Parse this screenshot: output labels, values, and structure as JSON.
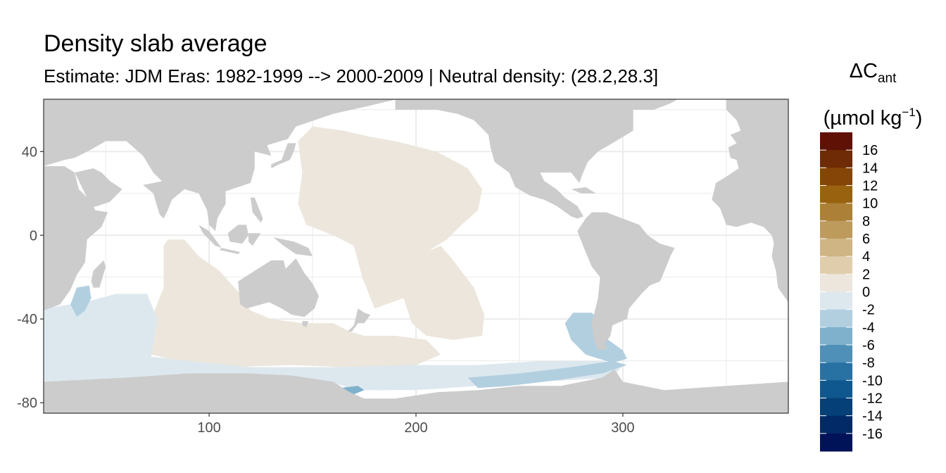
{
  "chart_data": {
    "type": "heatmap",
    "title": "Density slab average",
    "subtitle": "Estimate: JDM Eras: 1982-1999 --> 2000-2009 | Neutral density: (28.2,28.3]",
    "legend": {
      "title_main": "ΔC",
      "title_sub": "ant",
      "unit_main": "(µmol kg",
      "unit_sup": "−1",
      "unit_close": ")",
      "placement": "right",
      "labels": [
        "16",
        "14",
        "12",
        "10",
        "8",
        "6",
        "4",
        "2",
        "0",
        "-2",
        "-4",
        "-6",
        "-8",
        "-10",
        "-12",
        "-14",
        "-16"
      ],
      "bins": [
        {
          "from": 16,
          "to": 18,
          "color": "#5e1104"
        },
        {
          "from": 14,
          "to": 16,
          "color": "#6e2b05"
        },
        {
          "from": 12,
          "to": 14,
          "color": "#844507"
        },
        {
          "from": 10,
          "to": 12,
          "color": "#99620f"
        },
        {
          "from": 8,
          "to": 10,
          "color": "#ac8137"
        },
        {
          "from": 6,
          "to": 8,
          "color": "#bd9b5c"
        },
        {
          "from": 4,
          "to": 6,
          "color": "#cfb484"
        },
        {
          "from": 2,
          "to": 4,
          "color": "#e0cdab"
        },
        {
          "from": 0,
          "to": 2,
          "color": "#ede6dc"
        },
        {
          "from": -2,
          "to": 0,
          "color": "#dde8ee"
        },
        {
          "from": -4,
          "to": -2,
          "color": "#b2cfe0"
        },
        {
          "from": -6,
          "to": -4,
          "color": "#7fb1cc"
        },
        {
          "from": -8,
          "to": -6,
          "color": "#4f90b8"
        },
        {
          "from": -10,
          "to": -8,
          "color": "#2872a3"
        },
        {
          "from": -12,
          "to": -10,
          "color": "#0f588f"
        },
        {
          "from": -14,
          "to": -12,
          "color": "#054078"
        },
        {
          "from": -16,
          "to": -14,
          "color": "#022a66"
        },
        {
          "from": -18,
          "to": -16,
          "color": "#001358"
        }
      ]
    },
    "x_axis": {
      "label": "",
      "ticks": [
        100,
        200,
        300
      ],
      "range": [
        20,
        380
      ]
    },
    "y_axis": {
      "label": "",
      "ticks": [
        40,
        0,
        -40,
        -80
      ],
      "range": [
        -85,
        65
      ]
    },
    "grid": true,
    "colors": {
      "land": "#cccccc",
      "no_data": "#ffffff",
      "panel_border": "#333333",
      "grid": "#ebebeb"
    },
    "regions": [
      {
        "name": "Pacific subtropical",
        "value": 1
      },
      {
        "name": "Eastern Indian / Southern Ocean",
        "value": 1
      },
      {
        "name": "Western Indian / Southern Ocean",
        "value": -1
      },
      {
        "name": "Ross Sea coastal",
        "value": -1
      },
      {
        "name": "South Pacific coastal band",
        "value": -3
      },
      {
        "name": "Argentine Basin",
        "value": -3
      },
      {
        "name": "Mozambique Channel",
        "value": -3
      },
      {
        "name": "Ross Sea shelf patch",
        "value": -5
      }
    ]
  }
}
